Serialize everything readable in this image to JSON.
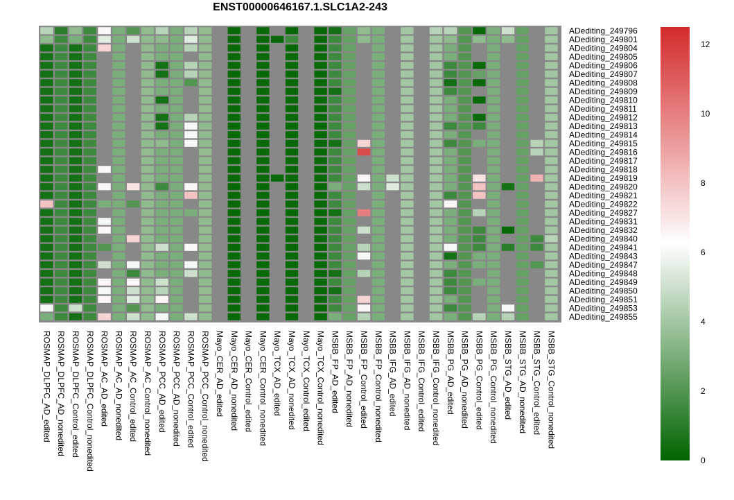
{
  "chart_data": {
    "type": "heatmap",
    "title": "ENST00000646167.1.SLC1A2-243",
    "columns": [
      "ROSMAP_DLPFC_AD_edited",
      "ROSMAP_DLPFC_AD_nonedited",
      "ROSMAP_DLPFC_Control_edited",
      "ROSMAP_DLPFC_Control_nonedited",
      "ROSMAP_AC_AD_edited",
      "ROSMAP_AC_AD_nonedited",
      "ROSMAP_AC_Control_edited",
      "ROSMAP_AC_Control_nonedited",
      "ROSMAP_PCC_AD_edited",
      "ROSMAP_PCC_AD_nonedited",
      "ROSMAP_PCC_Control_edited",
      "ROSMAP_PCC_Control_nonedited",
      "Mayo_CER_AD_edited",
      "Mayo_CER_AD_nonedited",
      "Mayo_CER_Control_edited",
      "Mayo_CER_Control_nonedited",
      "Mayo_TCX_AD_edited",
      "Mayo_TCX_AD_nonedited",
      "Mayo_TCX_Control_edited",
      "Mayo_TCX_Control_nonedited",
      "MSBB_FP_AD_edited",
      "MSBB_FP_AD_nonedited",
      "MSBB_FP_Control_edited",
      "MSBB_FP_Control_nonedited",
      "MSBB_IFG_AD_edited",
      "MSBB_IFG_AD_nonedited",
      "MSBB_IFG_Control_edited",
      "MSBB_IFG_Control_nonedited",
      "MSBB_PG_AD_edited",
      "MSBB_PG_AD_nonedited",
      "MSBB_PG_Control_edited",
      "MSBB_PG_Control_nonedited",
      "MSBB_STG_AD_edited",
      "MSBB_STG_AD_nonedited",
      "MSBB_STG_Control_edited",
      "MSBB_STG_Control_nonedited"
    ],
    "rows": [
      "ADediting_249796",
      "ADediting_249801",
      "ADediting_249804",
      "ADediting_249805",
      "ADediting_249806",
      "ADediting_249807",
      "ADediting_249808",
      "ADediting_249809",
      "ADediting_249810",
      "ADediting_249811",
      "ADediting_249812",
      "ADediting_249813",
      "ADediting_249814",
      "ADediting_249815",
      "ADediting_249816",
      "ADediting_249817",
      "ADediting_249818",
      "ADediting_249819",
      "ADediting_249820",
      "ADediting_249821",
      "ADediting_249822",
      "ADediting_249827",
      "ADediting_249831",
      "ADediting_249832",
      "ADediting_249840",
      "ADediting_249841",
      "ADediting_249843",
      "ADediting_249847",
      "ADediting_249848",
      "ADediting_249849",
      "ADediting_249850",
      "ADediting_249851",
      "ADediting_249853",
      "ADediting_249855"
    ],
    "values": [
      [
        4.5,
        1.0,
        3.5,
        1.5,
        6.5,
        3.0,
        2.0,
        3.5,
        4.5,
        3.0,
        4.5,
        3.5,
        null,
        0.2,
        null,
        0.2,
        null,
        0.2,
        null,
        0.2,
        0.5,
        2.5,
        3.5,
        3.0,
        null,
        4.0,
        null,
        4.5,
        4.5,
        2.0,
        0.2,
        3.0,
        5.0,
        2.5,
        null,
        4.0
      ],
      [
        3.5,
        1.5,
        3.0,
        1.5,
        5.5,
        3.0,
        5.0,
        3.5,
        3.5,
        3.0,
        5.5,
        3.5,
        null,
        0.2,
        null,
        0.2,
        0.2,
        1.5,
        null,
        0.2,
        1.5,
        2.5,
        3.5,
        3.0,
        null,
        4.0,
        null,
        4.0,
        3.5,
        2.0,
        3.5,
        3.0,
        3.5,
        2.5,
        null,
        4.0
      ],
      [
        0.5,
        1.5,
        0.5,
        1.5,
        7.5,
        3.0,
        null,
        3.5,
        3.0,
        3.0,
        4.5,
        3.5,
        null,
        0.2,
        null,
        0.2,
        null,
        0.2,
        null,
        0.2,
        1.5,
        2.5,
        null,
        3.0,
        null,
        4.0,
        null,
        4.0,
        3.0,
        2.0,
        null,
        3.0,
        null,
        2.5,
        null,
        4.0
      ],
      [
        0.5,
        1.5,
        0.5,
        1.5,
        null,
        3.0,
        null,
        3.5,
        3.0,
        3.0,
        null,
        3.5,
        null,
        0.2,
        null,
        0.2,
        null,
        0.2,
        null,
        0.2,
        1.5,
        2.5,
        null,
        3.0,
        null,
        4.0,
        null,
        4.0,
        3.0,
        2.0,
        null,
        3.0,
        null,
        2.5,
        null,
        4.0
      ],
      [
        0.5,
        1.5,
        0.5,
        1.5,
        null,
        3.0,
        null,
        3.5,
        0.5,
        3.0,
        4.5,
        3.5,
        null,
        0.2,
        null,
        0.2,
        null,
        0.2,
        null,
        0.2,
        1.5,
        2.5,
        null,
        3.0,
        null,
        4.0,
        null,
        4.0,
        1.5,
        2.0,
        0.2,
        3.0,
        null,
        2.5,
        null,
        4.0
      ],
      [
        0.5,
        1.5,
        0.5,
        1.5,
        null,
        3.0,
        null,
        3.5,
        0.5,
        3.0,
        4.5,
        3.5,
        null,
        0.2,
        null,
        0.2,
        null,
        0.2,
        null,
        0.2,
        1.5,
        2.5,
        null,
        3.0,
        null,
        4.0,
        null,
        4.0,
        1.5,
        2.0,
        2.5,
        3.0,
        null,
        2.5,
        null,
        4.0
      ],
      [
        0.5,
        1.5,
        0.5,
        1.5,
        null,
        3.0,
        null,
        3.5,
        3.0,
        3.0,
        2.0,
        3.5,
        null,
        0.2,
        null,
        0.2,
        null,
        0.2,
        null,
        0.2,
        1.5,
        2.5,
        null,
        3.0,
        null,
        4.0,
        null,
        4.0,
        0.5,
        2.0,
        0.2,
        3.0,
        null,
        2.5,
        null,
        4.0
      ],
      [
        0.5,
        1.5,
        0.5,
        1.5,
        null,
        3.0,
        null,
        3.5,
        3.0,
        3.0,
        null,
        3.5,
        null,
        0.2,
        null,
        0.2,
        null,
        0.2,
        null,
        0.2,
        0.5,
        2.5,
        null,
        3.0,
        null,
        4.0,
        null,
        4.0,
        1.5,
        2.0,
        null,
        3.0,
        null,
        2.5,
        null,
        4.0
      ],
      [
        0.5,
        1.5,
        0.5,
        1.5,
        null,
        3.0,
        null,
        3.5,
        0.5,
        3.0,
        null,
        3.5,
        null,
        0.2,
        null,
        0.2,
        null,
        0.2,
        null,
        0.2,
        1.5,
        2.5,
        null,
        3.0,
        null,
        4.0,
        null,
        4.0,
        3.0,
        2.0,
        0.2,
        3.0,
        null,
        2.5,
        null,
        4.0
      ],
      [
        0.5,
        1.5,
        0.5,
        1.5,
        null,
        3.0,
        null,
        3.5,
        3.0,
        3.0,
        null,
        3.5,
        null,
        0.2,
        null,
        0.2,
        null,
        0.2,
        null,
        0.2,
        1.5,
        2.5,
        null,
        3.0,
        null,
        4.0,
        null,
        4.0,
        3.0,
        2.0,
        null,
        3.0,
        null,
        2.5,
        null,
        4.0
      ],
      [
        0.5,
        1.5,
        0.5,
        1.5,
        null,
        3.0,
        null,
        3.5,
        0.5,
        3.0,
        4.5,
        3.5,
        null,
        0.2,
        null,
        0.2,
        null,
        0.2,
        null,
        0.2,
        1.5,
        2.5,
        null,
        3.0,
        null,
        4.0,
        null,
        4.0,
        3.0,
        2.0,
        0.2,
        3.0,
        null,
        2.5,
        null,
        4.0
      ],
      [
        0.5,
        1.5,
        0.5,
        1.5,
        null,
        3.0,
        null,
        3.5,
        0.5,
        3.0,
        6.0,
        3.5,
        null,
        0.2,
        null,
        0.2,
        null,
        0.2,
        null,
        0.2,
        1.5,
        2.5,
        null,
        3.0,
        null,
        4.0,
        null,
        4.0,
        1.5,
        2.0,
        1.5,
        3.0,
        null,
        2.5,
        null,
        4.0
      ],
      [
        0.5,
        1.5,
        0.5,
        1.5,
        null,
        3.0,
        null,
        3.5,
        3.0,
        3.0,
        6.0,
        3.5,
        null,
        0.2,
        null,
        0.2,
        null,
        0.2,
        null,
        0.2,
        1.5,
        2.5,
        null,
        3.0,
        null,
        4.0,
        null,
        4.0,
        3.0,
        2.0,
        null,
        3.0,
        null,
        2.5,
        null,
        4.0
      ],
      [
        0.5,
        1.5,
        0.5,
        1.5,
        null,
        3.0,
        null,
        3.5,
        3.5,
        3.0,
        6.0,
        3.5,
        null,
        0.2,
        null,
        0.2,
        null,
        0.2,
        null,
        0.2,
        0.5,
        2.5,
        7.5,
        3.0,
        null,
        4.0,
        null,
        4.0,
        1.5,
        2.0,
        3.0,
        3.0,
        null,
        2.5,
        4.5,
        4.0
      ],
      [
        0.5,
        1.5,
        0.5,
        1.5,
        null,
        3.0,
        null,
        3.5,
        3.0,
        3.0,
        null,
        3.5,
        null,
        0.2,
        null,
        0.2,
        null,
        0.2,
        null,
        0.2,
        1.5,
        2.5,
        11.5,
        3.0,
        null,
        4.0,
        null,
        4.0,
        3.0,
        2.0,
        null,
        3.0,
        null,
        2.5,
        4.5,
        4.0
      ],
      [
        0.5,
        1.5,
        0.5,
        1.5,
        null,
        3.0,
        null,
        3.5,
        3.0,
        3.0,
        null,
        3.5,
        null,
        0.2,
        null,
        0.2,
        null,
        0.2,
        null,
        0.2,
        1.5,
        2.5,
        null,
        3.0,
        null,
        4.0,
        null,
        4.0,
        3.0,
        2.0,
        null,
        3.0,
        null,
        2.5,
        null,
        4.0
      ],
      [
        0.5,
        1.5,
        0.5,
        1.5,
        6.5,
        3.0,
        null,
        3.5,
        3.0,
        3.0,
        null,
        3.5,
        null,
        0.2,
        null,
        0.2,
        null,
        0.2,
        null,
        0.2,
        1.5,
        2.5,
        null,
        3.0,
        null,
        4.0,
        null,
        4.0,
        3.0,
        2.0,
        null,
        3.0,
        null,
        2.5,
        null,
        4.0
      ],
      [
        0.5,
        1.5,
        0.5,
        1.5,
        null,
        3.0,
        null,
        3.5,
        3.0,
        3.0,
        null,
        3.5,
        null,
        0.2,
        null,
        0.2,
        0.2,
        0.2,
        null,
        0.2,
        1.5,
        2.5,
        6.5,
        3.0,
        5.0,
        4.0,
        null,
        4.0,
        3.0,
        2.0,
        7.0,
        3.0,
        null,
        2.5,
        8.5,
        4.0
      ],
      [
        0.5,
        1.5,
        0.5,
        1.5,
        6.5,
        3.0,
        7.0,
        3.5,
        1.5,
        3.0,
        6.5,
        3.5,
        null,
        0.2,
        null,
        0.2,
        null,
        0.2,
        null,
        0.2,
        3.0,
        2.5,
        5.0,
        3.0,
        5.5,
        4.0,
        null,
        4.0,
        3.0,
        2.0,
        8.0,
        3.0,
        0.5,
        2.5,
        null,
        4.0
      ],
      [
        0.5,
        1.5,
        0.5,
        1.5,
        null,
        3.0,
        null,
        3.5,
        3.0,
        3.0,
        8.0,
        3.5,
        null,
        0.2,
        null,
        0.2,
        null,
        0.2,
        null,
        0.2,
        1.5,
        2.5,
        null,
        3.0,
        null,
        4.0,
        null,
        4.0,
        1.5,
        2.0,
        8.0,
        3.0,
        null,
        2.5,
        null,
        4.0
      ],
      [
        8.0,
        1.5,
        0.5,
        1.5,
        3.0,
        3.0,
        2.0,
        3.5,
        3.0,
        3.0,
        null,
        3.5,
        null,
        0.2,
        null,
        0.2,
        null,
        0.2,
        null,
        0.2,
        1.5,
        2.5,
        null,
        3.0,
        null,
        4.0,
        null,
        4.0,
        6.5,
        2.0,
        null,
        3.0,
        null,
        2.5,
        null,
        4.0
      ],
      [
        0.5,
        1.5,
        0.5,
        1.5,
        null,
        3.0,
        null,
        3.5,
        3.0,
        3.0,
        3.0,
        3.5,
        null,
        0.2,
        null,
        0.2,
        null,
        0.2,
        null,
        0.2,
        0.5,
        2.5,
        10.0,
        3.0,
        null,
        4.0,
        null,
        4.0,
        3.0,
        2.0,
        4.5,
        3.0,
        null,
        2.5,
        null,
        4.0
      ],
      [
        0.5,
        1.5,
        0.5,
        1.5,
        6.0,
        3.0,
        null,
        3.5,
        3.0,
        3.0,
        null,
        3.5,
        null,
        0.2,
        null,
        0.2,
        null,
        0.2,
        null,
        0.2,
        1.5,
        2.5,
        null,
        3.0,
        null,
        4.0,
        null,
        4.0,
        3.0,
        2.0,
        null,
        3.0,
        null,
        2.5,
        null,
        4.0
      ],
      [
        0.5,
        1.5,
        0.5,
        1.5,
        6.5,
        3.0,
        null,
        3.5,
        3.0,
        3.0,
        null,
        3.5,
        null,
        0.2,
        null,
        0.2,
        null,
        0.2,
        null,
        0.2,
        1.5,
        2.5,
        5.0,
        3.0,
        null,
        4.0,
        null,
        4.0,
        3.0,
        2.0,
        1.5,
        3.0,
        0.2,
        2.5,
        null,
        4.0
      ],
      [
        0.5,
        1.5,
        0.5,
        1.5,
        null,
        3.0,
        7.5,
        3.5,
        3.0,
        3.0,
        null,
        3.5,
        null,
        0.2,
        null,
        0.2,
        null,
        0.2,
        null,
        0.2,
        1.5,
        2.5,
        null,
        3.0,
        null,
        4.0,
        null,
        4.0,
        3.0,
        2.0,
        1.5,
        3.0,
        null,
        2.5,
        1.5,
        4.5
      ],
      [
        0.5,
        1.5,
        0.5,
        1.5,
        2.0,
        3.0,
        null,
        3.5,
        5.0,
        3.0,
        6.5,
        3.5,
        null,
        0.2,
        null,
        0.2,
        null,
        0.2,
        null,
        0.2,
        1.5,
        2.5,
        4.5,
        3.0,
        null,
        4.0,
        null,
        4.0,
        6.0,
        2.0,
        1.5,
        3.0,
        1.0,
        2.5,
        1.5,
        4.0
      ],
      [
        0.5,
        1.5,
        0.5,
        1.5,
        null,
        3.0,
        null,
        3.5,
        3.0,
        3.0,
        null,
        3.5,
        null,
        0.2,
        null,
        0.2,
        null,
        0.2,
        null,
        0.2,
        1.5,
        2.5,
        6.0,
        3.0,
        null,
        4.0,
        null,
        4.0,
        0.5,
        2.0,
        3.0,
        3.0,
        null,
        2.5,
        null,
        4.0
      ],
      [
        0.5,
        1.5,
        0.5,
        1.5,
        5.0,
        3.0,
        6.0,
        3.5,
        3.0,
        3.0,
        6.0,
        3.5,
        null,
        0.2,
        null,
        0.2,
        null,
        0.2,
        null,
        0.2,
        1.5,
        2.5,
        null,
        3.0,
        null,
        4.0,
        null,
        4.0,
        3.0,
        2.0,
        3.0,
        3.0,
        null,
        2.5,
        2.0,
        4.0
      ],
      [
        0.5,
        1.5,
        0.5,
        1.5,
        null,
        3.0,
        1.5,
        3.5,
        3.0,
        3.0,
        5.0,
        3.5,
        null,
        0.2,
        null,
        0.2,
        null,
        0.2,
        null,
        0.2,
        0.5,
        2.5,
        4.5,
        3.0,
        null,
        4.0,
        null,
        4.0,
        1.5,
        2.0,
        null,
        3.0,
        null,
        2.5,
        null,
        4.0
      ],
      [
        0.5,
        1.5,
        0.5,
        1.5,
        6.5,
        3.0,
        6.5,
        3.5,
        5.0,
        3.0,
        null,
        3.5,
        null,
        0.2,
        null,
        0.2,
        null,
        0.2,
        null,
        0.2,
        1.5,
        2.5,
        null,
        3.0,
        null,
        4.0,
        null,
        4.0,
        1.5,
        2.0,
        3.0,
        3.0,
        null,
        2.5,
        null,
        4.0
      ],
      [
        0.5,
        1.5,
        0.5,
        1.5,
        6.0,
        3.0,
        5.0,
        3.5,
        4.5,
        3.0,
        null,
        3.5,
        null,
        0.2,
        null,
        0.2,
        null,
        0.2,
        null,
        0.2,
        0.5,
        2.5,
        null,
        3.0,
        null,
        4.0,
        null,
        4.0,
        1.5,
        2.0,
        null,
        3.0,
        null,
        2.5,
        null,
        4.0
      ],
      [
        0.5,
        1.5,
        0.5,
        1.5,
        6.5,
        3.0,
        5.5,
        3.5,
        6.5,
        3.0,
        null,
        3.5,
        null,
        0.2,
        null,
        0.2,
        null,
        0.2,
        null,
        0.2,
        1.5,
        2.5,
        7.5,
        3.0,
        null,
        4.0,
        null,
        4.0,
        3.0,
        2.0,
        null,
        3.0,
        null,
        2.5,
        null,
        4.0
      ],
      [
        6.0,
        1.5,
        5.0,
        1.5,
        null,
        3.0,
        2.0,
        3.5,
        3.0,
        3.0,
        null,
        3.5,
        null,
        0.2,
        null,
        0.2,
        null,
        0.2,
        null,
        0.2,
        1.5,
        2.5,
        6.5,
        3.0,
        null,
        4.0,
        null,
        4.0,
        1.5,
        2.0,
        null,
        3.0,
        6.0,
        2.5,
        null,
        4.0
      ],
      [
        3.0,
        1.5,
        0.5,
        1.5,
        7.5,
        3.0,
        5.0,
        3.5,
        6.0,
        3.0,
        5.0,
        3.5,
        null,
        0.2,
        null,
        0.2,
        null,
        0.2,
        null,
        0.2,
        3.0,
        2.5,
        4.5,
        3.0,
        null,
        4.0,
        null,
        4.0,
        3.0,
        2.0,
        4.5,
        3.0,
        4.5,
        2.5,
        null,
        4.0
      ]
    ],
    "missing_color": "#888888",
    "colorscale": {
      "low": "#006400",
      "mid": "#ffffff",
      "high": "#d42a2a",
      "min": 0,
      "mid_value": 6.25,
      "max": 12.5
    },
    "legend": {
      "ticks": [
        "0",
        "2",
        "4",
        "6",
        "8",
        "10",
        "12"
      ],
      "placement": "right"
    }
  }
}
